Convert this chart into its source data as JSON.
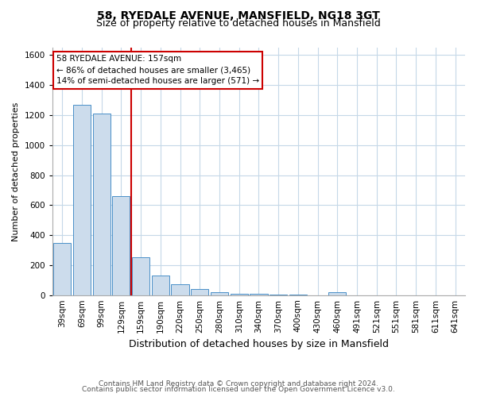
{
  "title_line1": "58, RYEDALE AVENUE, MANSFIELD, NG18 3GT",
  "title_line2": "Size of property relative to detached houses in Mansfield",
  "xlabel": "Distribution of detached houses by size in Mansfield",
  "ylabel": "Number of detached properties",
  "categories": [
    "39sqm",
    "69sqm",
    "99sqm",
    "129sqm",
    "159sqm",
    "190sqm",
    "220sqm",
    "250sqm",
    "280sqm",
    "310sqm",
    "340sqm",
    "370sqm",
    "400sqm",
    "430sqm",
    "460sqm",
    "491sqm",
    "521sqm",
    "551sqm",
    "581sqm",
    "611sqm",
    "641sqm"
  ],
  "values": [
    350,
    1270,
    1210,
    660,
    250,
    130,
    70,
    40,
    20,
    10,
    10,
    5,
    5,
    0,
    20,
    0,
    0,
    0,
    0,
    0,
    0
  ],
  "bar_color": "#ccdcec",
  "bar_edge_color": "#4a90c8",
  "red_line_x": 3.5,
  "red_line_color": "#cc0000",
  "annotation_text": "58 RYEDALE AVENUE: 157sqm\n← 86% of detached houses are smaller (3,465)\n14% of semi-detached houses are larger (571) →",
  "annotation_box_color": "#ffffff",
  "annotation_box_edge_color": "#cc0000",
  "ylim": [
    0,
    1650
  ],
  "yticks": [
    0,
    200,
    400,
    600,
    800,
    1000,
    1200,
    1400,
    1600
  ],
  "footer_line1": "Contains HM Land Registry data © Crown copyright and database right 2024.",
  "footer_line2": "Contains public sector information licensed under the Open Government Licence v3.0.",
  "title_fontsize": 10,
  "subtitle_fontsize": 9,
  "xlabel_fontsize": 9,
  "ylabel_fontsize": 8,
  "tick_fontsize": 7.5,
  "annotation_fontsize": 7.5,
  "footer_fontsize": 6.5,
  "background_color": "#ffffff",
  "grid_color": "#c5d8e8"
}
